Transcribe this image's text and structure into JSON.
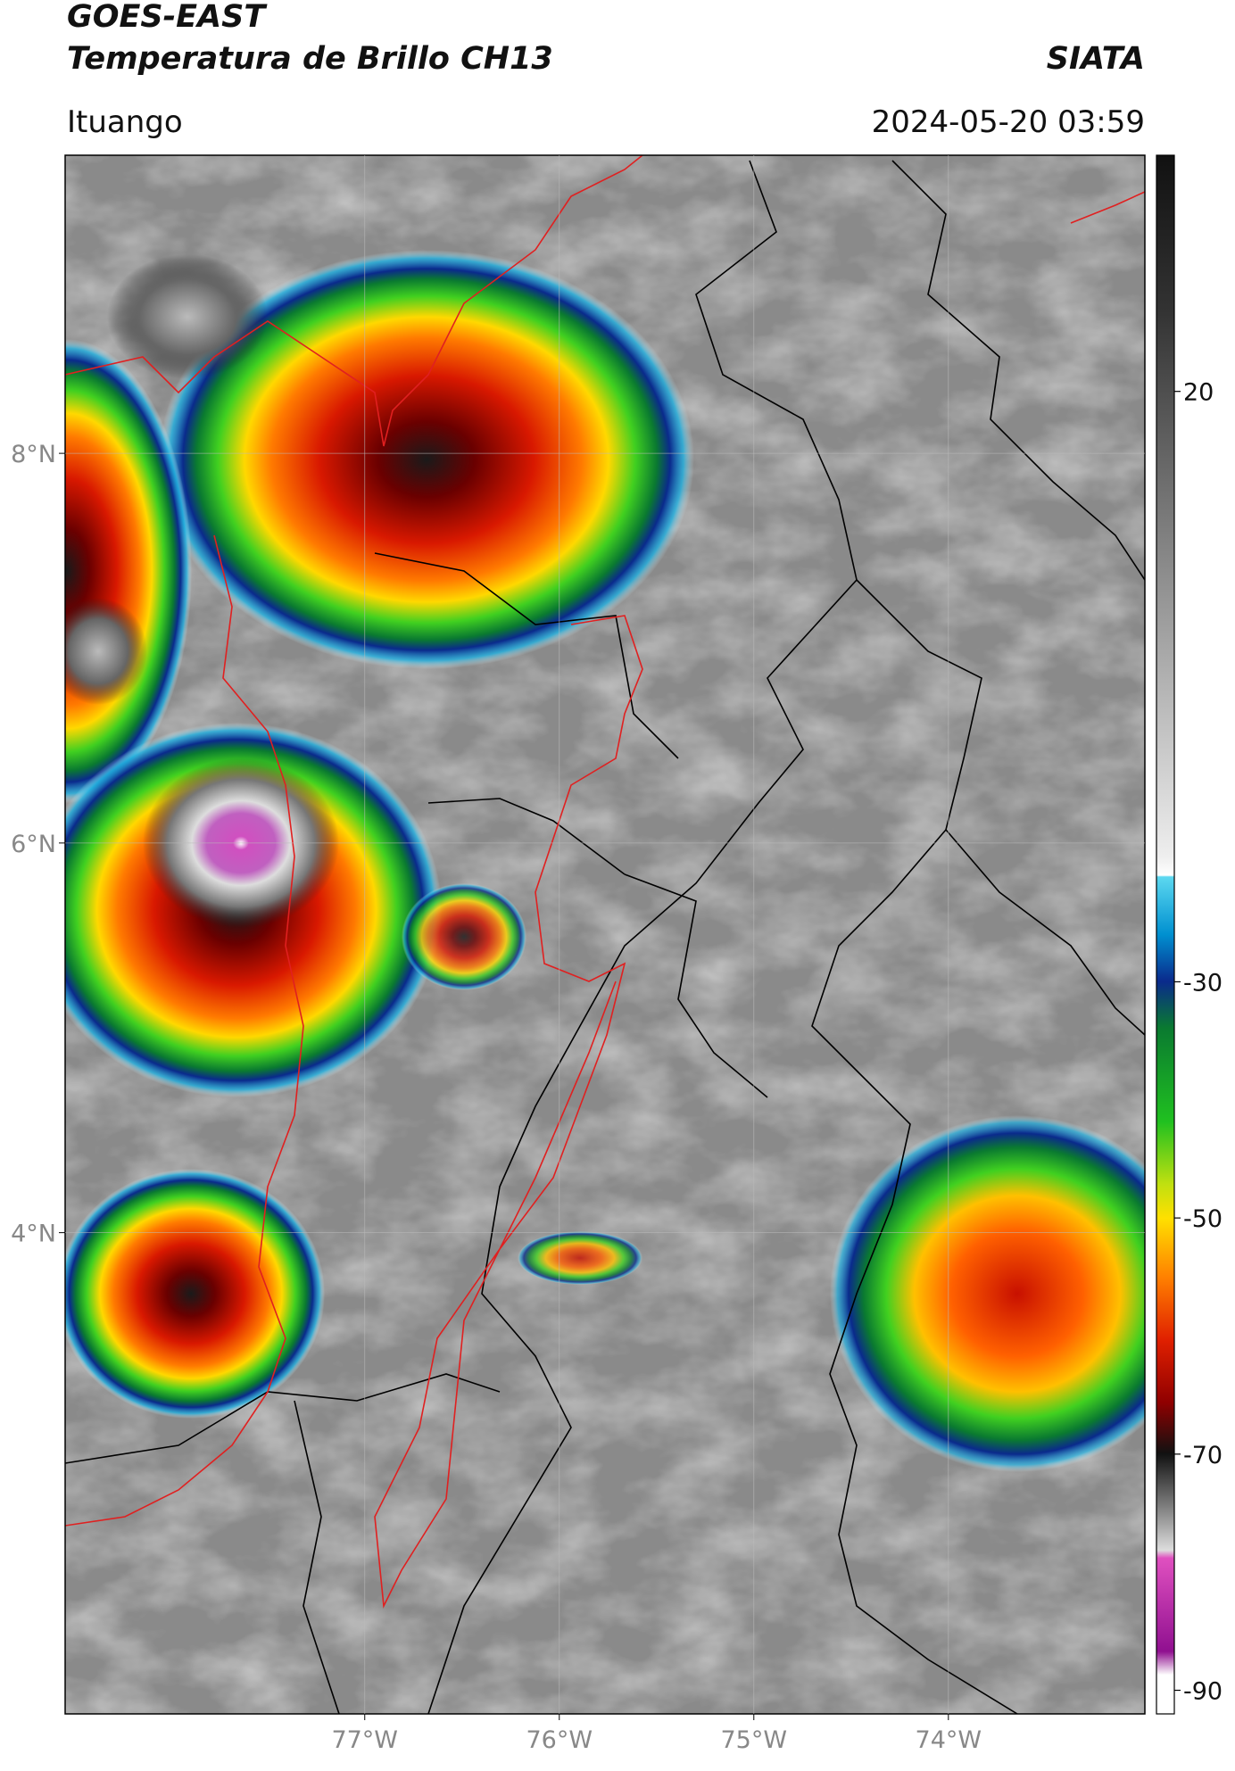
{
  "header": {
    "title": "GOES-EAST",
    "subtitle": "Temperatura de Brillo CH13",
    "brand": "SIATA",
    "region": "Ituango",
    "timestamp": "2024-05-20 03:59"
  },
  "map": {
    "xlim": [
      -78.54,
      -72.99
    ],
    "ylim": [
      1.53,
      9.53
    ],
    "xticks": [
      {
        "value": -77,
        "label": "77°W"
      },
      {
        "value": -76,
        "label": "76°W"
      },
      {
        "value": -75,
        "label": "75°W"
      },
      {
        "value": -74,
        "label": "74°W"
      }
    ],
    "yticks": [
      {
        "value": 8,
        "label": "8°N"
      },
      {
        "value": 6,
        "label": "6°N"
      },
      {
        "value": 4,
        "label": "4°N"
      }
    ]
  },
  "colorbar": {
    "clim": [
      -92,
      40
    ],
    "ticks": [
      20,
      -30,
      -50,
      -70,
      -90
    ]
  }
}
